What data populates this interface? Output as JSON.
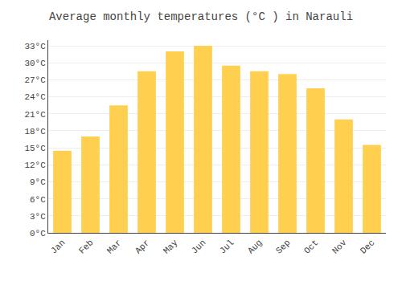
{
  "chart_data": {
    "type": "bar",
    "title": "Average monthly temperatures (°C ) in Narauli",
    "categories": [
      "Jan",
      "Feb",
      "Mar",
      "Apr",
      "May",
      "Jun",
      "Jul",
      "Aug",
      "Sep",
      "Oct",
      "Nov",
      "Dec"
    ],
    "values": [
      14.5,
      17.0,
      22.5,
      28.5,
      32.0,
      33.0,
      29.5,
      28.5,
      28.0,
      25.5,
      20.0,
      15.5
    ],
    "color": "#FFD050",
    "ylim": [
      0,
      34
    ],
    "yticks": [
      {
        "value": 0,
        "label": "0°C"
      },
      {
        "value": 3,
        "label": "3°C"
      },
      {
        "value": 6,
        "label": "6°C"
      },
      {
        "value": 9,
        "label": "9°C"
      },
      {
        "value": 12,
        "label": "12°C"
      },
      {
        "value": 15,
        "label": "15°C"
      },
      {
        "value": 18,
        "label": "18°C"
      },
      {
        "value": 21,
        "label": "21°C"
      },
      {
        "value": 24,
        "label": "24°C"
      },
      {
        "value": 27,
        "label": "27°C"
      },
      {
        "value": 30,
        "label": "30°C"
      },
      {
        "value": 33,
        "label": "33°C"
      }
    ],
    "grid": true
  }
}
